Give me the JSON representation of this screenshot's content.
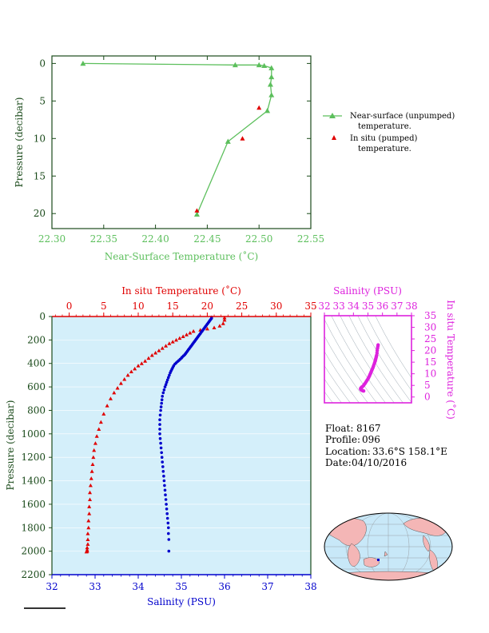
{
  "colors": {
    "green": "#5cbf5c",
    "red": "#e00000",
    "blue": "#0000cc",
    "magenta": "#dd22dd",
    "axis_dark": "#1a4a1a",
    "panel_bg": "#d4effa",
    "land": "#f4b6b6",
    "ocean": "#c8e8f8"
  },
  "info": {
    "float_label": "Float:",
    "float_value": "8167",
    "profile_label": "Profile:",
    "profile_value": "096",
    "location_label": "Location:",
    "location_value": "33.6°S  158.1°E",
    "date_label": "Date:",
    "date_value": "04/10/2016"
  },
  "chart_data": [
    {
      "type": "line",
      "xlabel": "Near-Surface Temperature (˚C)",
      "ylabel": "Pressure (decibar)",
      "xlim": [
        22.3,
        22.55
      ],
      "ylim": [
        22,
        -1
      ],
      "x_ticks": [
        "22.30",
        "22.35",
        "22.40",
        "22.45",
        "22.50",
        "22.55"
      ],
      "y_ticks": [
        "0",
        "5",
        "10",
        "15",
        "20"
      ],
      "legend_position": "right",
      "series": [
        {
          "name": "Near-surface (unpumped) temperature.",
          "legend_lines": [
            "Near-surface (unpumped)",
            "temperature."
          ],
          "marker": "triangle",
          "line": true,
          "x": [
            22.33,
            22.477,
            22.5,
            22.505,
            22.512,
            22.512,
            22.511,
            22.512,
            22.508,
            22.47,
            22.44
          ],
          "y": [
            0.0,
            0.2,
            0.2,
            0.3,
            0.6,
            1.8,
            2.8,
            4.2,
            6.3,
            10.4,
            20.1
          ]
        },
        {
          "name": "In situ (pumped) temperature.",
          "legend_lines": [
            "In situ (pumped)",
            "temperature."
          ],
          "marker": "triangle",
          "line": false,
          "x": [
            22.5,
            22.484,
            22.44
          ],
          "y": [
            5.9,
            10.0,
            19.6
          ]
        }
      ]
    },
    {
      "type": "scatter",
      "ylabel": "Pressure (decibar)",
      "top_xlabel": "In situ Temperature (˚C)",
      "bottom_xlabel": "Salinity (PSU)",
      "temp_lim": [
        -2.5,
        35
      ],
      "sal_lim": [
        32,
        38
      ],
      "ylim": [
        0,
        2200
      ],
      "temp_ticks": [
        "0",
        "5",
        "10",
        "15",
        "20",
        "25",
        "30",
        "35"
      ],
      "sal_ticks": [
        "32",
        "33",
        "34",
        "35",
        "36",
        "37",
        "38"
      ],
      "y_ticks": [
        "0",
        "200",
        "400",
        "600",
        "800",
        "1000",
        "1200",
        "1400",
        "1600",
        "1800",
        "2000",
        "2200"
      ],
      "series": [
        {
          "name": "In situ Temperature",
          "marker": "triangle",
          "x": [
            22.5,
            22.5,
            22.3,
            21.8,
            21.0,
            20.0,
            19.0,
            18.0,
            17.5,
            17.0,
            16.5,
            16.0,
            15.5,
            15.0,
            14.5,
            14.0,
            13.5,
            13.0,
            12.5,
            12.0,
            11.5,
            11.0,
            10.5,
            10.0,
            9.5,
            9.0,
            8.5,
            8.0,
            7.5,
            7.0,
            6.5,
            6.0,
            5.5,
            5.0,
            4.6,
            4.3,
            4.0,
            3.8,
            3.6,
            3.5,
            3.4,
            3.3,
            3.2,
            3.1,
            3.0,
            3.0,
            2.9,
            2.9,
            2.8,
            2.8,
            2.7,
            2.7,
            2.7,
            2.6,
            2.6,
            2.6,
            2.5
          ],
          "y": [
            10,
            30,
            60,
            80,
            95,
            105,
            115,
            125,
            140,
            155,
            170,
            185,
            200,
            215,
            230,
            250,
            270,
            290,
            310,
            330,
            355,
            380,
            400,
            420,
            445,
            470,
            500,
            535,
            570,
            610,
            650,
            700,
            760,
            830,
            900,
            960,
            1020,
            1080,
            1140,
            1200,
            1260,
            1320,
            1380,
            1440,
            1500,
            1560,
            1620,
            1680,
            1740,
            1800,
            1850,
            1900,
            1940,
            1970,
            1990,
            2000,
            2005
          ]
        },
        {
          "name": "Salinity",
          "marker": "circle",
          "x": [
            35.7,
            35.7,
            35.68,
            35.66,
            35.64,
            35.62,
            35.6,
            35.58,
            35.56,
            35.54,
            35.52,
            35.5,
            35.48,
            35.46,
            35.44,
            35.42,
            35.4,
            35.38,
            35.36,
            35.34,
            35.32,
            35.3,
            35.28,
            35.26,
            35.24,
            35.22,
            35.2,
            35.18,
            35.16,
            35.14,
            35.12,
            35.1,
            35.08,
            35.05,
            35.02,
            35.0,
            34.97,
            34.94,
            34.91,
            34.88,
            34.85,
            34.82,
            34.8,
            34.78,
            34.76,
            34.74,
            34.72,
            34.7,
            34.68,
            34.66,
            34.64,
            34.62,
            34.6,
            34.58,
            34.56,
            34.55,
            34.54,
            34.53,
            34.52,
            34.51,
            34.5,
            34.5,
            34.5,
            34.5,
            34.51,
            34.52,
            34.53,
            34.54,
            34.55,
            34.56,
            34.57,
            34.58,
            34.59,
            34.6,
            34.61,
            34.62,
            34.63,
            34.64,
            34.65,
            34.66,
            34.67,
            34.68,
            34.69,
            34.7,
            34.7,
            34.71,
            34.71
          ],
          "y": [
            5,
            15,
            25,
            35,
            45,
            55,
            65,
            75,
            85,
            95,
            105,
            115,
            125,
            135,
            145,
            155,
            165,
            175,
            185,
            195,
            205,
            215,
            225,
            235,
            245,
            255,
            265,
            275,
            285,
            295,
            305,
            315,
            325,
            335,
            345,
            355,
            365,
            375,
            385,
            395,
            405,
            420,
            435,
            450,
            465,
            480,
            500,
            520,
            540,
            560,
            580,
            600,
            625,
            650,
            680,
            710,
            740,
            770,
            800,
            840,
            880,
            920,
            960,
            1000,
            1040,
            1080,
            1120,
            1160,
            1200,
            1240,
            1280,
            1320,
            1360,
            1400,
            1440,
            1480,
            1520,
            1560,
            1600,
            1640,
            1680,
            1720,
            1760,
            1800,
            1850,
            1900,
            2000
          ]
        }
      ]
    },
    {
      "type": "scatter",
      "xlabel": "Salinity (PSU)",
      "ylabel": "In situ Temperature (˚C)",
      "xlim": [
        32,
        38
      ],
      "ylim": [
        -2.5,
        35
      ],
      "x_ticks": [
        "32",
        "33",
        "34",
        "35",
        "36",
        "37",
        "38"
      ],
      "y_ticks": [
        "0",
        "5",
        "10",
        "15",
        "20",
        "25",
        "30",
        "35"
      ],
      "series": [
        {
          "name": "T-S",
          "marker": "circle",
          "x": [
            35.7,
            35.68,
            35.66,
            35.64,
            35.62,
            35.6,
            35.58,
            35.56,
            35.54,
            35.52,
            35.5,
            35.46,
            35.42,
            35.38,
            35.34,
            35.3,
            35.26,
            35.22,
            35.18,
            35.14,
            35.1,
            35.05,
            35.0,
            34.94,
            34.88,
            34.82,
            34.76,
            34.7,
            34.64,
            34.58,
            34.54,
            34.51,
            34.5,
            34.5,
            34.52,
            34.55,
            34.58,
            34.62,
            34.66,
            34.7
          ],
          "y": [
            22.4,
            21.8,
            21.0,
            20.0,
            19.0,
            18.0,
            17.5,
            17.0,
            16.5,
            16.0,
            15.5,
            14.8,
            14.0,
            13.3,
            12.6,
            12.0,
            11.4,
            10.8,
            10.2,
            9.6,
            9.0,
            8.4,
            7.8,
            7.2,
            6.6,
            6.0,
            5.5,
            5.0,
            4.6,
            4.3,
            4.0,
            3.8,
            3.6,
            3.4,
            3.2,
            3.0,
            2.9,
            2.8,
            2.7,
            2.6
          ]
        }
      ]
    }
  ]
}
